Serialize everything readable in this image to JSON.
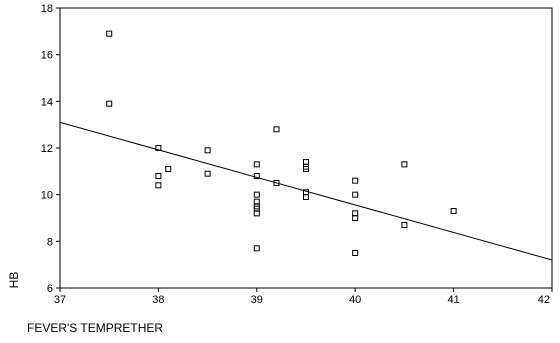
{
  "chart_data": {
    "type": "scatter",
    "title": "",
    "xlabel": "FEVER'S TEMPRETHER",
    "ylabel": "HB",
    "xlim": [
      37,
      42
    ],
    "ylim": [
      6,
      18
    ],
    "x_ticks": [
      "37",
      "38",
      "39",
      "40",
      "41",
      "42"
    ],
    "y_ticks": [
      "6",
      "8",
      "10",
      "12",
      "14",
      "16",
      "18"
    ],
    "grid": false,
    "marker": "open-square",
    "points": [
      {
        "x": 37.5,
        "y": 16.9
      },
      {
        "x": 37.5,
        "y": 13.9
      },
      {
        "x": 38.0,
        "y": 12.0
      },
      {
        "x": 38.0,
        "y": 10.8
      },
      {
        "x": 38.0,
        "y": 10.4
      },
      {
        "x": 38.1,
        "y": 11.1
      },
      {
        "x": 38.5,
        "y": 11.9
      },
      {
        "x": 38.5,
        "y": 10.9
      },
      {
        "x": 39.0,
        "y": 11.3
      },
      {
        "x": 39.0,
        "y": 10.8
      },
      {
        "x": 39.0,
        "y": 10.0
      },
      {
        "x": 39.0,
        "y": 9.7
      },
      {
        "x": 39.0,
        "y": 9.5
      },
      {
        "x": 39.0,
        "y": 9.4
      },
      {
        "x": 39.0,
        "y": 9.2
      },
      {
        "x": 39.0,
        "y": 7.7
      },
      {
        "x": 39.2,
        "y": 12.8
      },
      {
        "x": 39.2,
        "y": 10.5
      },
      {
        "x": 39.5,
        "y": 11.4
      },
      {
        "x": 39.5,
        "y": 11.2
      },
      {
        "x": 39.5,
        "y": 11.1
      },
      {
        "x": 39.5,
        "y": 10.1
      },
      {
        "x": 39.5,
        "y": 9.9
      },
      {
        "x": 40.0,
        "y": 10.6
      },
      {
        "x": 40.0,
        "y": 10.0
      },
      {
        "x": 40.0,
        "y": 9.2
      },
      {
        "x": 40.0,
        "y": 9.0
      },
      {
        "x": 40.0,
        "y": 7.5
      },
      {
        "x": 40.5,
        "y": 11.3
      },
      {
        "x": 40.5,
        "y": 8.7
      },
      {
        "x": 41.0,
        "y": 9.3
      }
    ],
    "fit_line": {
      "x": [
        37,
        42
      ],
      "y": [
        13.1,
        7.2
      ]
    }
  }
}
